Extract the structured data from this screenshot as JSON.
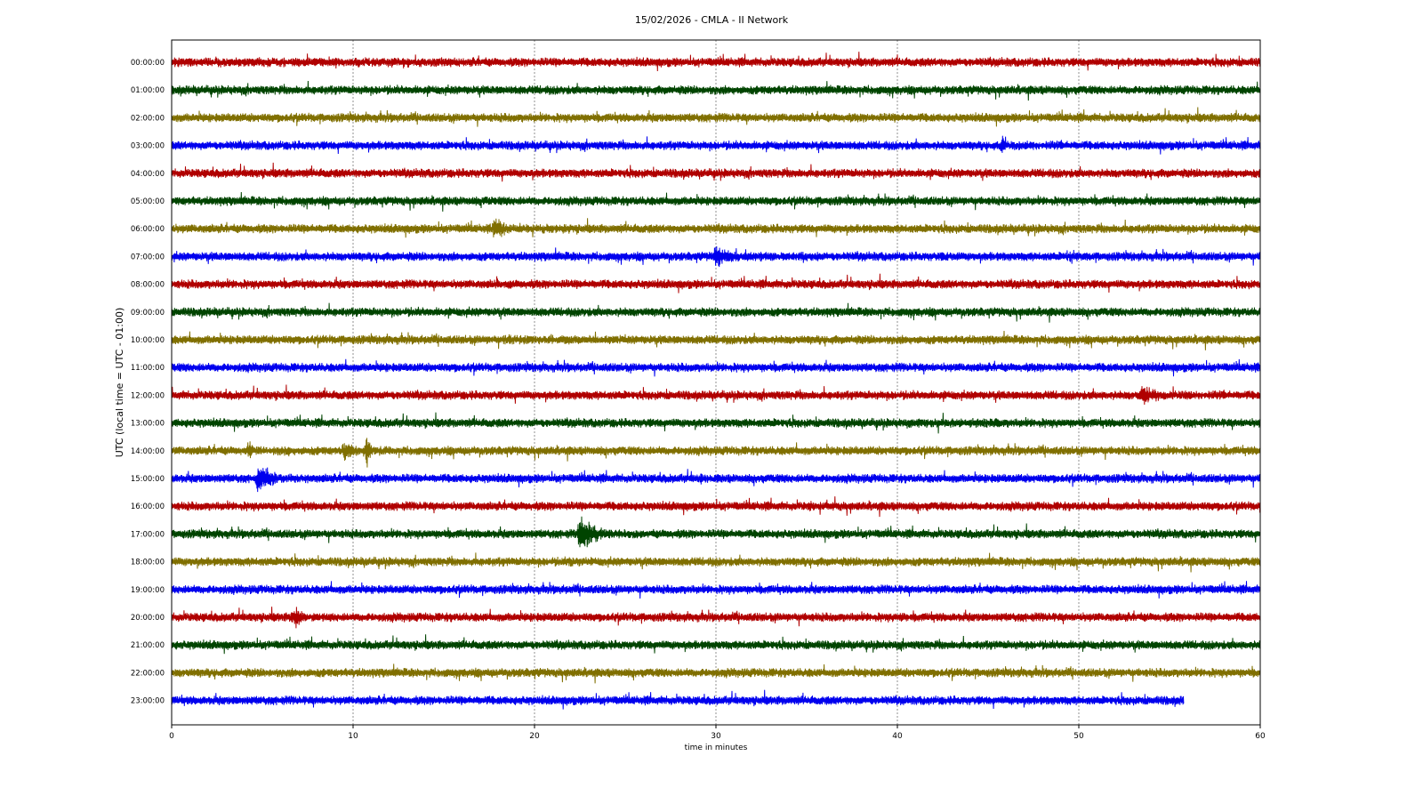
{
  "chart_data": {
    "type": "line",
    "title": "15/02/2026 - CMLA - II Network",
    "xlabel": "time in minutes",
    "ylabel": "UTC (local time = UTC - 01:00)",
    "xlim": [
      0,
      60
    ],
    "x_ticks": [
      0,
      10,
      20,
      30,
      40,
      50,
      60
    ],
    "x_tick_labels": [
      "0",
      "10",
      "20",
      "30",
      "40",
      "50",
      "60"
    ],
    "grid": "vertical dotted lines at x ticks",
    "legend": "none",
    "row_labels": [
      "00:00:00",
      "01:00:00",
      "02:00:00",
      "03:00:00",
      "04:00:00",
      "05:00:00",
      "06:00:00",
      "07:00:00",
      "08:00:00",
      "09:00:00",
      "10:00:00",
      "11:00:00",
      "12:00:00",
      "13:00:00",
      "14:00:00",
      "15:00:00",
      "16:00:00",
      "17:00:00",
      "18:00:00",
      "19:00:00",
      "20:00:00",
      "21:00:00",
      "22:00:00",
      "23:00:00"
    ],
    "trace_colors": [
      "#b00000",
      "#004400",
      "#806f00",
      "#0000ee"
    ],
    "last_trace_end_minute": 55.8,
    "notable_events": [
      {
        "row": "03:00:00",
        "minute": 45.8,
        "amplitude": "medium"
      },
      {
        "row": "05:00:00",
        "minute": 17.3,
        "amplitude": "small"
      },
      {
        "row": "06:00:00",
        "minute": 17.8,
        "amplitude": "medium",
        "duration_min": 3
      },
      {
        "row": "07:00:00",
        "minute": 30.0,
        "amplitude": "medium",
        "duration_min": 4
      },
      {
        "row": "07:00:00",
        "minute": 34.8,
        "amplitude": "small"
      },
      {
        "row": "07:00:00",
        "minute": 42.5,
        "amplitude": "small"
      },
      {
        "row": "07:00:00",
        "minute": 49.5,
        "amplitude": "small"
      },
      {
        "row": "08:00:00",
        "minute": 18.0,
        "amplitude": "small"
      },
      {
        "row": "10:00:00",
        "minute": 18.5,
        "amplitude": "small",
        "duration_min": 2
      },
      {
        "row": "12:00:00",
        "minute": 53.5,
        "amplitude": "medium",
        "duration_min": 3
      },
      {
        "row": "13:00:00",
        "minute": 41.0,
        "amplitude": "small",
        "duration_min": 1.5
      },
      {
        "row": "14:00:00",
        "minute": 4.3,
        "amplitude": "medium"
      },
      {
        "row": "14:00:00",
        "minute": 9.5,
        "amplitude": "medium",
        "duration_min": 2.5
      },
      {
        "row": "14:00:00",
        "minute": 10.8,
        "amplitude": "large"
      },
      {
        "row": "15:00:00",
        "minute": 4.8,
        "amplitude": "large",
        "duration_min": 2.5
      },
      {
        "row": "15:00:00",
        "minute": 29.2,
        "amplitude": "small"
      },
      {
        "row": "16:00:00",
        "minute": 35.2,
        "amplitude": "small"
      },
      {
        "row": "17:00:00",
        "minute": 22.5,
        "amplitude": "large",
        "duration_min": 3.5
      },
      {
        "row": "18:00:00",
        "minute": 22.0,
        "amplitude": "small"
      },
      {
        "row": "20:00:00",
        "minute": 6.8,
        "amplitude": "medium",
        "duration_min": 1.5
      },
      {
        "row": "20:00:00",
        "minute": 40.2,
        "amplitude": "small"
      }
    ]
  }
}
